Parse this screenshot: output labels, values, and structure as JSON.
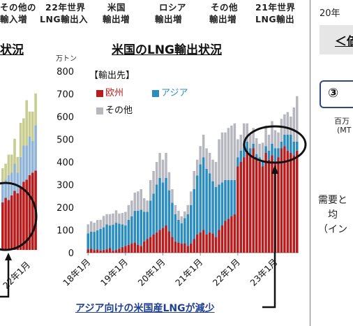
{
  "header": {
    "labels": [
      {
        "line1": "その他の",
        "line2": "輸入増"
      },
      {
        "line1": "22年世界",
        "line2": "LNG輸出入"
      },
      {
        "line1": "米国",
        "line2": "輸出増"
      },
      {
        "line1": "ロシア",
        "line2": "輸出増"
      },
      {
        "line1": "その他",
        "line2": "輸出増"
      },
      {
        "line1": "21年世界",
        "line2": "LNG輸出"
      }
    ]
  },
  "left_panel": {
    "title": "状況",
    "tick": "22年1月"
  },
  "right_panel": {
    "top_text": "20年",
    "box1_text": "＜価",
    "box2_text": "③",
    "unit_line1": "百万",
    "unit_line2": "(MT",
    "note_line1": "需要と",
    "note_line2": "均",
    "note_line3": "（イン"
  },
  "colors": {
    "europe": "#b81c1c",
    "asia": "#2b8cbf",
    "other": "#b7b7bf",
    "circle": "#111111",
    "note": "#1f3f8f"
  },
  "annotation": "アジア向けの米国産LNGが減少",
  "chart_data": {
    "type": "bar",
    "stacked": true,
    "title": "米国のLNG輸出状況",
    "unit": "万トン",
    "ylim": [
      0,
      800
    ],
    "yticks": [
      0,
      100,
      200,
      300,
      400,
      500,
      600,
      700,
      800
    ],
    "xtick_labels": [
      "18年1月",
      "19年1月",
      "20年1月",
      "21年1月",
      "22年1月",
      "23年1月"
    ],
    "legend_title": "【輸出先】",
    "legend": [
      "欧州",
      "アジア",
      "その他"
    ],
    "series": [
      {
        "name": "欧州",
        "values": [
          15,
          18,
          12,
          14,
          10,
          12,
          15,
          20,
          8,
          12,
          18,
          25,
          30,
          35,
          40,
          45,
          35,
          30,
          50,
          60,
          70,
          80,
          90,
          100,
          110,
          120,
          95,
          70,
          50,
          45,
          40,
          42,
          30,
          40,
          60,
          80,
          90,
          100,
          80,
          90,
          85,
          70,
          100,
          120,
          140,
          150,
          160,
          170,
          380,
          400,
          420,
          450,
          430,
          460,
          420,
          400,
          380,
          440,
          410,
          430,
          400,
          420,
          460,
          470,
          450,
          440,
          430,
          450
        ]
      },
      {
        "name": "アジア",
        "values": [
          70,
          75,
          80,
          85,
          95,
          100,
          110,
          100,
          115,
          120,
          110,
          100,
          90,
          110,
          120,
          140,
          150,
          160,
          130,
          120,
          160,
          180,
          210,
          230,
          200,
          210,
          180,
          150,
          120,
          100,
          90,
          110,
          140,
          170,
          220,
          260,
          300,
          320,
          290,
          260,
          230,
          220,
          200,
          190,
          180,
          170,
          160,
          150,
          40,
          50,
          60,
          40,
          30,
          20,
          15,
          20,
          25,
          30,
          40,
          50,
          60,
          40,
          30,
          50,
          70,
          80,
          60,
          40
        ]
      },
      {
        "name": "その他",
        "values": [
          40,
          45,
          40,
          45,
          40,
          50,
          45,
          50,
          50,
          55,
          45,
          50,
          60,
          65,
          70,
          80,
          85,
          90,
          60,
          50,
          90,
          100,
          100,
          110,
          100,
          110,
          80,
          60,
          40,
          40,
          30,
          30,
          40,
          60,
          80,
          70,
          80,
          100,
          90,
          90,
          95,
          110,
          200,
          220,
          210,
          230,
          240,
          250,
          80,
          70,
          90,
          80,
          60,
          70,
          70,
          60,
          80,
          90,
          70,
          100,
          80,
          70,
          100,
          90,
          100,
          80,
          150,
          200
        ]
      }
    ]
  }
}
